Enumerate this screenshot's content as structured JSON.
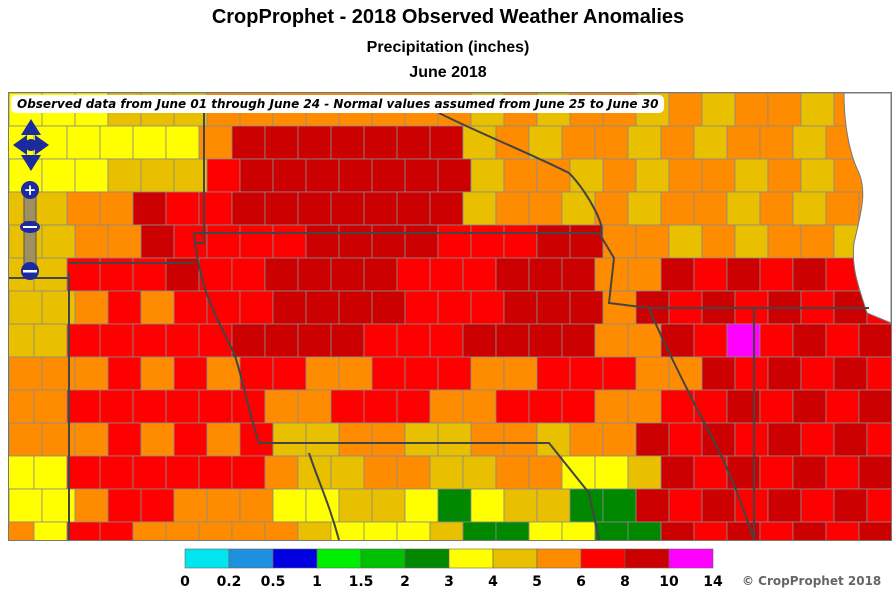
{
  "title": "CropProphet - 2018 Observed Weather Anomalies",
  "subtitle": "Precipitation (inches)",
  "period": "June 2018",
  "banner": "Observed data from June 01 through June 24 - Normal values assumed from June 25 to June 30",
  "copyright": "© CropProphet 2018",
  "legend": {
    "labels": [
      "0",
      "0.2",
      "0.5",
      "1",
      "1.5",
      "2",
      "3",
      "4",
      "5",
      "6",
      "8",
      "10",
      "14"
    ],
    "colors": [
      "#00e5ee",
      "#1e90e0",
      "#0000e0",
      "#00ee00",
      "#00c000",
      "#008800",
      "#ffff00",
      "#e8c000",
      "#ff8c00",
      "#ff0000",
      "#cc0000",
      "#ff00ff"
    ]
  },
  "map_controls": {
    "pan": "pan-control",
    "zoom_in": "+",
    "zoom_out": "−"
  }
}
